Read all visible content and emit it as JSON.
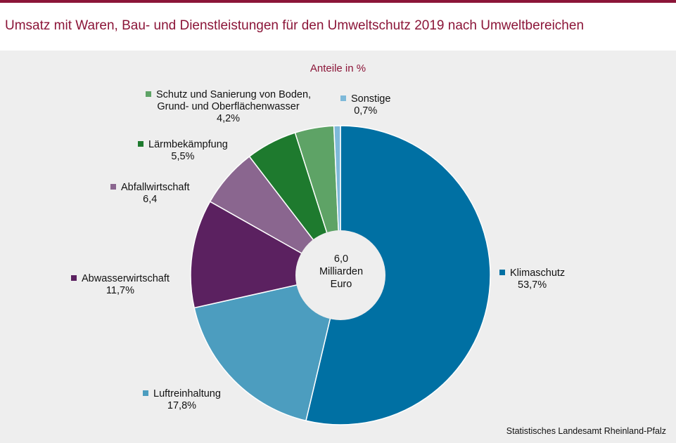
{
  "header": {
    "title": "Umsatz mit Waren, Bau- und Dienstleistungen für den Umweltschutz 2019 nach Umweltbereichen"
  },
  "chart_data": {
    "type": "pie",
    "subtitle": "Anteile in %",
    "center_lines": [
      "6,0",
      "Milliarden",
      "Euro"
    ],
    "slices": [
      {
        "name": "Klimaschutz",
        "value": 53.7,
        "value_label": "53,7%",
        "color": "#0070a3"
      },
      {
        "name": "Luftreinhaltung",
        "value": 17.8,
        "value_label": "17,8%",
        "color": "#4c9dbf"
      },
      {
        "name": "Abwasserwirtschaft",
        "value": 11.7,
        "value_label": "11,7%",
        "color": "#5b2160"
      },
      {
        "name": "Abfallwirtschaft",
        "value": 6.4,
        "value_label": "6,4",
        "color": "#8a668f"
      },
      {
        "name": "Lärmbekämpfung",
        "value": 5.5,
        "value_label": "5,5%",
        "color": "#1e7a2e"
      },
      {
        "name_lines": [
          "Schutz und Sanierung von Boden,",
          "Grund- und Oberflächenwasser"
        ],
        "value": 4.2,
        "value_label": "4,2%",
        "color": "#5ea366"
      },
      {
        "name": "Sonstige",
        "value": 0.7,
        "value_label": "0,7%",
        "color": "#7eb9d9"
      }
    ]
  },
  "footer": {
    "source": "Statistisches Landesamt Rheinland-Pfalz"
  }
}
